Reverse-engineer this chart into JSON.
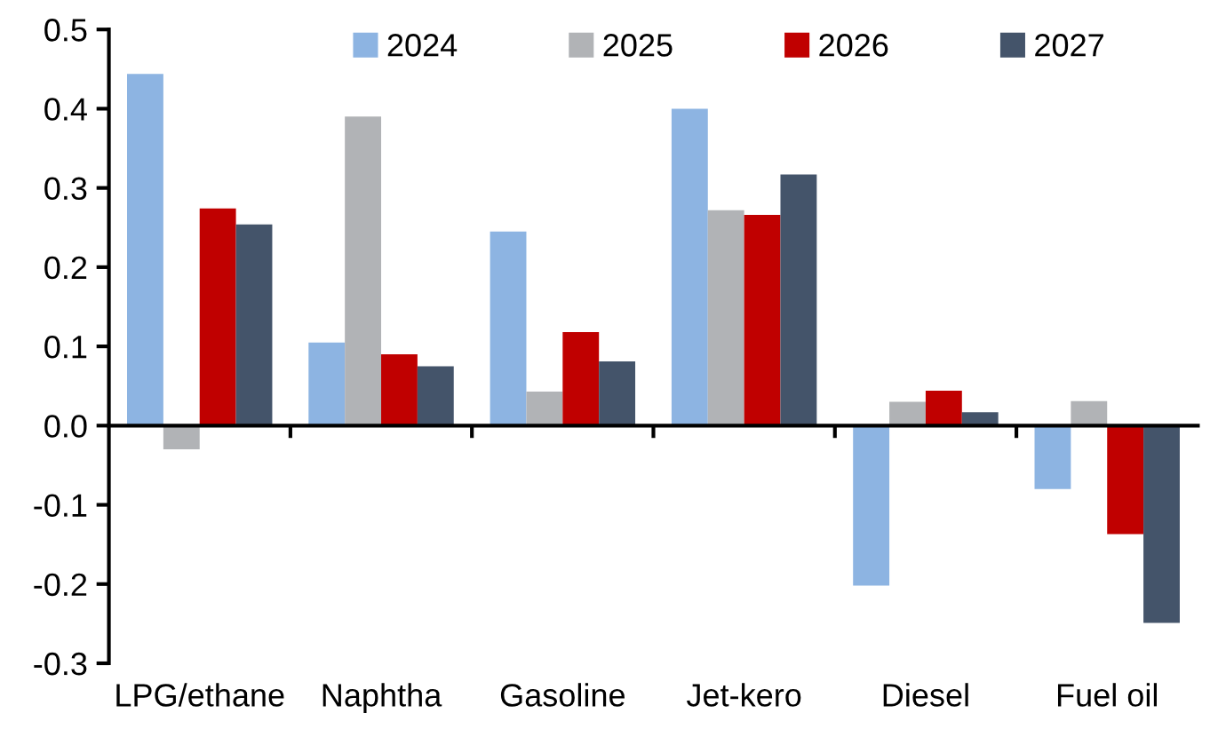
{
  "chart_data": {
    "type": "bar",
    "categories": [
      "LPG/ethane",
      "Naphtha",
      "Gasoline",
      "Jet-kero",
      "Diesel",
      "Fuel oil"
    ],
    "series": [
      {
        "name": "2024",
        "color": "#8db4e2",
        "values": [
          0.444,
          0.105,
          0.245,
          0.4,
          -0.202,
          -0.08
        ]
      },
      {
        "name": "2025",
        "color": "#b1b3b6",
        "values": [
          -0.03,
          0.39,
          0.043,
          0.272,
          0.03,
          0.031
        ]
      },
      {
        "name": "2026",
        "color": "#c00000",
        "values": [
          0.274,
          0.09,
          0.118,
          0.266,
          0.044,
          -0.137
        ]
      },
      {
        "name": "2027",
        "color": "#44546a",
        "values": [
          0.254,
          0.075,
          0.081,
          0.317,
          0.017,
          -0.249
        ]
      }
    ],
    "ylim": [
      -0.3,
      0.5
    ],
    "yticks": [
      {
        "value": -0.3,
        "label": "-0.3"
      },
      {
        "value": -0.2,
        "label": "-0.2"
      },
      {
        "value": -0.1,
        "label": "-0.1"
      },
      {
        "value": 0,
        "label": "0.0"
      },
      {
        "value": 0.1,
        "label": "0.1"
      },
      {
        "value": 0.2,
        "label": "0.2"
      },
      {
        "value": 0.3,
        "label": "0.3"
      },
      {
        "value": 0.4,
        "label": "0.4"
      },
      {
        "value": 0.5,
        "label": "0.5"
      }
    ],
    "legend": "top"
  }
}
